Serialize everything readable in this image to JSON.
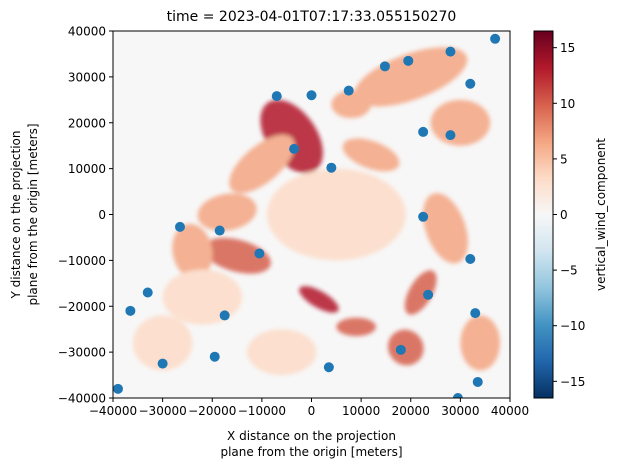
{
  "chart_data": {
    "type": "scatter",
    "title": "time = 2023-04-01T07:17:33.055150270",
    "xlabel_lines": [
      "X distance on the projection",
      "plane from the origin [meters]"
    ],
    "ylabel_lines": [
      "Y distance on the projection",
      "plane from the origin [meters]"
    ],
    "colorbar_label": "vertical_wind_component",
    "xlim": [
      -40000,
      40000
    ],
    "ylim": [
      -40000,
      40000
    ],
    "clim": [
      -16.5,
      16.5
    ],
    "colormap": "RdBu_r",
    "x_ticks": [
      -40000,
      -30000,
      -20000,
      -10000,
      0,
      10000,
      20000,
      30000,
      40000
    ],
    "x_tick_labels": [
      "−40000",
      "−30000",
      "−20000",
      "−10000",
      "0",
      "10000",
      "20000",
      "30000",
      "40000"
    ],
    "y_ticks": [
      -40000,
      -30000,
      -20000,
      -10000,
      0,
      10000,
      20000,
      30000,
      40000
    ],
    "y_tick_labels": [
      "−40000",
      "−30000",
      "−20000",
      "−10000",
      "0",
      "10000",
      "20000",
      "30000",
      "40000"
    ],
    "colorbar_ticks": [
      -15,
      -10,
      -5,
      0,
      5,
      10,
      15
    ],
    "colorbar_tick_labels": [
      "−15",
      "−10",
      "−5",
      "0",
      "5",
      "10",
      "15"
    ],
    "marker_color": "#1f77b4",
    "points": [
      {
        "x": 37000,
        "y": 38300
      },
      {
        "x": 28000,
        "y": 35500
      },
      {
        "x": 19500,
        "y": 33500
      },
      {
        "x": 14800,
        "y": 32300
      },
      {
        "x": 32000,
        "y": 28500
      },
      {
        "x": 7500,
        "y": 27000
      },
      {
        "x": 0,
        "y": 26000
      },
      {
        "x": -7000,
        "y": 25800
      },
      {
        "x": 22500,
        "y": 18000
      },
      {
        "x": 28000,
        "y": 17300
      },
      {
        "x": -3500,
        "y": 14300
      },
      {
        "x": 4000,
        "y": 10200
      },
      {
        "x": 22500,
        "y": -500
      },
      {
        "x": -26500,
        "y": -2700
      },
      {
        "x": -18500,
        "y": -3500
      },
      {
        "x": -10500,
        "y": -8500
      },
      {
        "x": 32000,
        "y": -9700
      },
      {
        "x": -33000,
        "y": -17000
      },
      {
        "x": 23500,
        "y": -17500
      },
      {
        "x": -36500,
        "y": -21000
      },
      {
        "x": -17500,
        "y": -22000
      },
      {
        "x": 33000,
        "y": -21500
      },
      {
        "x": 18000,
        "y": -29500
      },
      {
        "x": -19500,
        "y": -31000
      },
      {
        "x": -30000,
        "y": -32500
      },
      {
        "x": 3500,
        "y": -33300
      },
      {
        "x": 33500,
        "y": -36500
      },
      {
        "x": -39000,
        "y": -38000
      },
      {
        "x": 29500,
        "y": -40000
      }
    ],
    "field_blobs": [
      {
        "x": -4000,
        "y": 17000,
        "rx": 5000,
        "ry": 9000,
        "rot": 35,
        "v": 13
      },
      {
        "x": -10000,
        "y": 11000,
        "rx": 8000,
        "ry": 4000,
        "rot": 40,
        "v": 6
      },
      {
        "x": -15000,
        "y": -9000,
        "rx": 7000,
        "ry": 3500,
        "rot": -15,
        "v": 9
      },
      {
        "x": -17000,
        "y": 500,
        "rx": 6000,
        "ry": 4000,
        "rot": 10,
        "v": 6
      },
      {
        "x": -24000,
        "y": -8000,
        "rx": 4000,
        "ry": 6000,
        "rot": 10,
        "v": 5
      },
      {
        "x": 1500,
        "y": -18500,
        "rx": 4500,
        "ry": 1800,
        "rot": -30,
        "v": 12
      },
      {
        "x": 9000,
        "y": -24500,
        "rx": 4000,
        "ry": 2000,
        "rot": 0,
        "v": 9
      },
      {
        "x": 22000,
        "y": -17000,
        "rx": 5000,
        "ry": 2500,
        "rot": 60,
        "v": 9
      },
      {
        "x": 19000,
        "y": -29000,
        "rx": 3500,
        "ry": 4000,
        "rot": 45,
        "v": 8
      },
      {
        "x": 27000,
        "y": -3000,
        "rx": 4000,
        "ry": 8000,
        "rot": 20,
        "v": 4
      },
      {
        "x": 12000,
        "y": 13000,
        "rx": 6000,
        "ry": 3000,
        "rot": -20,
        "v": 5
      },
      {
        "x": 20000,
        "y": 30000,
        "rx": 12000,
        "ry": 5000,
        "rot": 20,
        "v": 4
      },
      {
        "x": 30000,
        "y": 20000,
        "rx": 6000,
        "ry": 5000,
        "rot": 0,
        "v": 4
      },
      {
        "x": -22000,
        "y": -18000,
        "rx": 8000,
        "ry": 6000,
        "rot": 0,
        "v": 3
      },
      {
        "x": -30000,
        "y": -28000,
        "rx": 6000,
        "ry": 6000,
        "rot": 0,
        "v": 3
      },
      {
        "x": 5000,
        "y": 0,
        "rx": 14000,
        "ry": 10000,
        "rot": 0,
        "v": 2
      },
      {
        "x": 34000,
        "y": -28000,
        "rx": 4000,
        "ry": 6000,
        "rot": 0,
        "v": 5
      },
      {
        "x": -6000,
        "y": -30000,
        "rx": 7000,
        "ry": 5000,
        "rot": 0,
        "v": 3
      },
      {
        "x": 8000,
        "y": 24000,
        "rx": 4000,
        "ry": 3000,
        "rot": 0,
        "v": 5
      }
    ]
  }
}
